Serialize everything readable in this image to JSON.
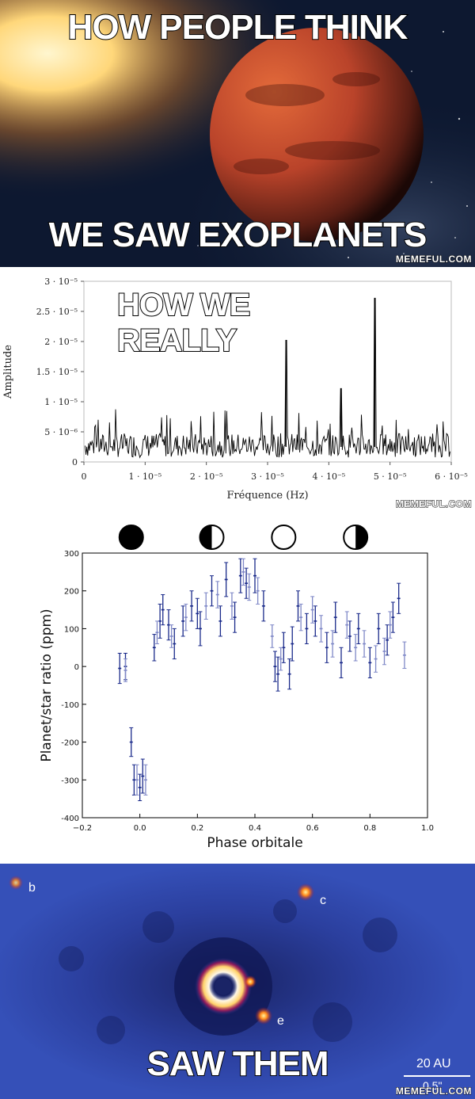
{
  "panel1": {
    "caption_top": "HOW PEOPLE THINK",
    "caption_bottom": "WE SAW EXOPLANETS",
    "watermark": "MEMEFUL.COM",
    "colors": {
      "space": "#0d1830",
      "star": "#ffd77a",
      "planet": "#b9432a"
    }
  },
  "panel2": {
    "caption": "HOW WE REALLY",
    "watermark": "MEMEFUL.COM",
    "chart_data": {
      "type": "line",
      "xlabel": "Fréquence (Hz)",
      "ylabel": "Amplitude",
      "xlim": [
        0,
        6e-05
      ],
      "ylim": [
        0,
        3e-05
      ],
      "x_ticks": [
        "0",
        "1 · 10⁻⁵",
        "2 · 10⁻⁵",
        "3 · 10⁻⁵",
        "4 · 10⁻⁵",
        "5 · 10⁻⁵",
        "6 · 10⁻⁵"
      ],
      "y_ticks": [
        "0",
        "5 · 10⁻⁶",
        "1 · 10⁻⁵",
        "1.5 · 10⁻⁵",
        "2 · 10⁻⁵",
        "2.5 · 10⁻⁵",
        "3 · 10⁻⁵"
      ],
      "peaks": [
        {
          "x": 3.3e-05,
          "y": 2.02e-05
        },
        {
          "x": 4.2e-05,
          "y": 1.22e-05
        },
        {
          "x": 4.75e-05,
          "y": 2.72e-05
        }
      ],
      "noise_level": 2.5e-06,
      "noise_max": 9e-06
    }
  },
  "panel3": {
    "chart_data": {
      "type": "scatter",
      "xlabel": "Phase orbitale",
      "ylabel": "Planet/star ratio (ppm)",
      "xlim": [
        -0.2,
        1.0
      ],
      "ylim": [
        -400,
        300
      ],
      "x_ticks": [
        "−0.2",
        "0.0",
        "0.2",
        "0.4",
        "0.6",
        "0.8",
        "1.0"
      ],
      "y_ticks": [
        "-400",
        "-300",
        "-200",
        "-100",
        "0",
        "100",
        "200",
        "300"
      ],
      "series": [
        {
          "color": "#1a2a8a",
          "points": [
            {
              "x": -0.07,
              "y": -5,
              "e": 40
            },
            {
              "x": -0.05,
              "y": 0,
              "e": 35
            },
            {
              "x": -0.03,
              "y": -200,
              "e": 38
            },
            {
              "x": -0.02,
              "y": -300,
              "e": 40
            },
            {
              "x": 0.0,
              "y": -320,
              "e": 35
            },
            {
              "x": 0.01,
              "y": -290,
              "e": 45
            },
            {
              "x": 0.05,
              "y": 50,
              "e": 35
            },
            {
              "x": 0.07,
              "y": 120,
              "e": 45
            },
            {
              "x": 0.08,
              "y": 150,
              "e": 40
            },
            {
              "x": 0.1,
              "y": 110,
              "e": 40
            },
            {
              "x": 0.12,
              "y": 60,
              "e": 40
            },
            {
              "x": 0.15,
              "y": 120,
              "e": 40
            },
            {
              "x": 0.18,
              "y": 160,
              "e": 40
            },
            {
              "x": 0.2,
              "y": 140,
              "e": 40
            },
            {
              "x": 0.21,
              "y": 100,
              "e": 45
            },
            {
              "x": 0.25,
              "y": 200,
              "e": 40
            },
            {
              "x": 0.28,
              "y": 120,
              "e": 40
            },
            {
              "x": 0.3,
              "y": 230,
              "e": 45
            },
            {
              "x": 0.33,
              "y": 130,
              "e": 40
            },
            {
              "x": 0.35,
              "y": 240,
              "e": 45
            },
            {
              "x": 0.37,
              "y": 220,
              "e": 40
            },
            {
              "x": 0.4,
              "y": 240,
              "e": 45
            },
            {
              "x": 0.43,
              "y": 160,
              "e": 40
            },
            {
              "x": 0.47,
              "y": 0,
              "e": 40
            },
            {
              "x": 0.48,
              "y": -20,
              "e": 45
            },
            {
              "x": 0.5,
              "y": 50,
              "e": 40
            },
            {
              "x": 0.52,
              "y": -20,
              "e": 40
            },
            {
              "x": 0.53,
              "y": 60,
              "e": 45
            },
            {
              "x": 0.55,
              "y": 160,
              "e": 40
            },
            {
              "x": 0.58,
              "y": 100,
              "e": 40
            },
            {
              "x": 0.61,
              "y": 120,
              "e": 40
            },
            {
              "x": 0.65,
              "y": 50,
              "e": 40
            },
            {
              "x": 0.68,
              "y": 130,
              "e": 40
            },
            {
              "x": 0.7,
              "y": 10,
              "e": 40
            },
            {
              "x": 0.73,
              "y": 80,
              "e": 40
            },
            {
              "x": 0.76,
              "y": 100,
              "e": 40
            },
            {
              "x": 0.8,
              "y": 10,
              "e": 40
            },
            {
              "x": 0.83,
              "y": 100,
              "e": 40
            },
            {
              "x": 0.86,
              "y": 70,
              "e": 40
            },
            {
              "x": 0.88,
              "y": 130,
              "e": 40
            },
            {
              "x": 0.9,
              "y": 180,
              "e": 40
            }
          ]
        },
        {
          "color": "#7f88c7",
          "points": [
            {
              "x": -0.05,
              "y": -10,
              "e": 30
            },
            {
              "x": -0.01,
              "y": -300,
              "e": 40
            },
            {
              "x": 0.02,
              "y": -300,
              "e": 40
            },
            {
              "x": 0.06,
              "y": 90,
              "e": 30
            },
            {
              "x": 0.11,
              "y": 80,
              "e": 30
            },
            {
              "x": 0.16,
              "y": 130,
              "e": 35
            },
            {
              "x": 0.23,
              "y": 160,
              "e": 35
            },
            {
              "x": 0.27,
              "y": 190,
              "e": 35
            },
            {
              "x": 0.32,
              "y": 160,
              "e": 35
            },
            {
              "x": 0.36,
              "y": 250,
              "e": 35
            },
            {
              "x": 0.38,
              "y": 210,
              "e": 35
            },
            {
              "x": 0.41,
              "y": 200,
              "e": 35
            },
            {
              "x": 0.46,
              "y": 80,
              "e": 30
            },
            {
              "x": 0.49,
              "y": 20,
              "e": 30
            },
            {
              "x": 0.56,
              "y": 130,
              "e": 35
            },
            {
              "x": 0.6,
              "y": 150,
              "e": 35
            },
            {
              "x": 0.63,
              "y": 100,
              "e": 35
            },
            {
              "x": 0.67,
              "y": 60,
              "e": 35
            },
            {
              "x": 0.72,
              "y": 110,
              "e": 35
            },
            {
              "x": 0.75,
              "y": 50,
              "e": 35
            },
            {
              "x": 0.78,
              "y": 60,
              "e": 35
            },
            {
              "x": 0.82,
              "y": 20,
              "e": 35
            },
            {
              "x": 0.85,
              "y": 40,
              "e": 35
            },
            {
              "x": 0.87,
              "y": 110,
              "e": 35
            },
            {
              "x": 0.92,
              "y": 30,
              "e": 35
            }
          ]
        }
      ],
      "phase_icons": [
        {
          "x": -0.03,
          "phase": "new"
        },
        {
          "x": 0.25,
          "phase": "first-quarter"
        },
        {
          "x": 0.5,
          "phase": "full"
        },
        {
          "x": 0.75,
          "phase": "last-quarter"
        }
      ]
    }
  },
  "panel4": {
    "caption": "SAW THEM",
    "labels": {
      "b": "b",
      "c": "c",
      "e": "e"
    },
    "scale_au": "20 AU",
    "scale_arcsec": "0.5\"",
    "watermark": "MEMEFUL.COM",
    "colors": {
      "background": "#2b3f9e",
      "planet": "#ff8a1a"
    }
  }
}
